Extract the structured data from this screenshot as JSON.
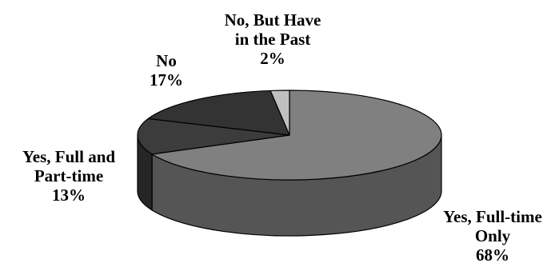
{
  "chart_data": {
    "type": "pie",
    "three_d": true,
    "title": "",
    "slices": [
      {
        "label_lines": [
          "Yes, Full-time",
          "Only"
        ],
        "percent_text": "68%",
        "value": 68,
        "color": "#808080",
        "side_color": "#555555"
      },
      {
        "label_lines": [
          "Yes, Full and",
          "Part-time"
        ],
        "percent_text": "13%",
        "value": 13,
        "color": "#3c3c3c",
        "side_color": "#262626"
      },
      {
        "label_lines": [
          "No"
        ],
        "percent_text": "17%",
        "value": 17,
        "color": "#333333",
        "side_color": "#222222"
      },
      {
        "label_lines": [
          "No, But Have",
          "in the Past"
        ],
        "percent_text": "2%",
        "value": 2,
        "color": "#c0c0c0",
        "side_color": "#999999"
      }
    ],
    "legend": "none",
    "outline_color": "#000000"
  }
}
